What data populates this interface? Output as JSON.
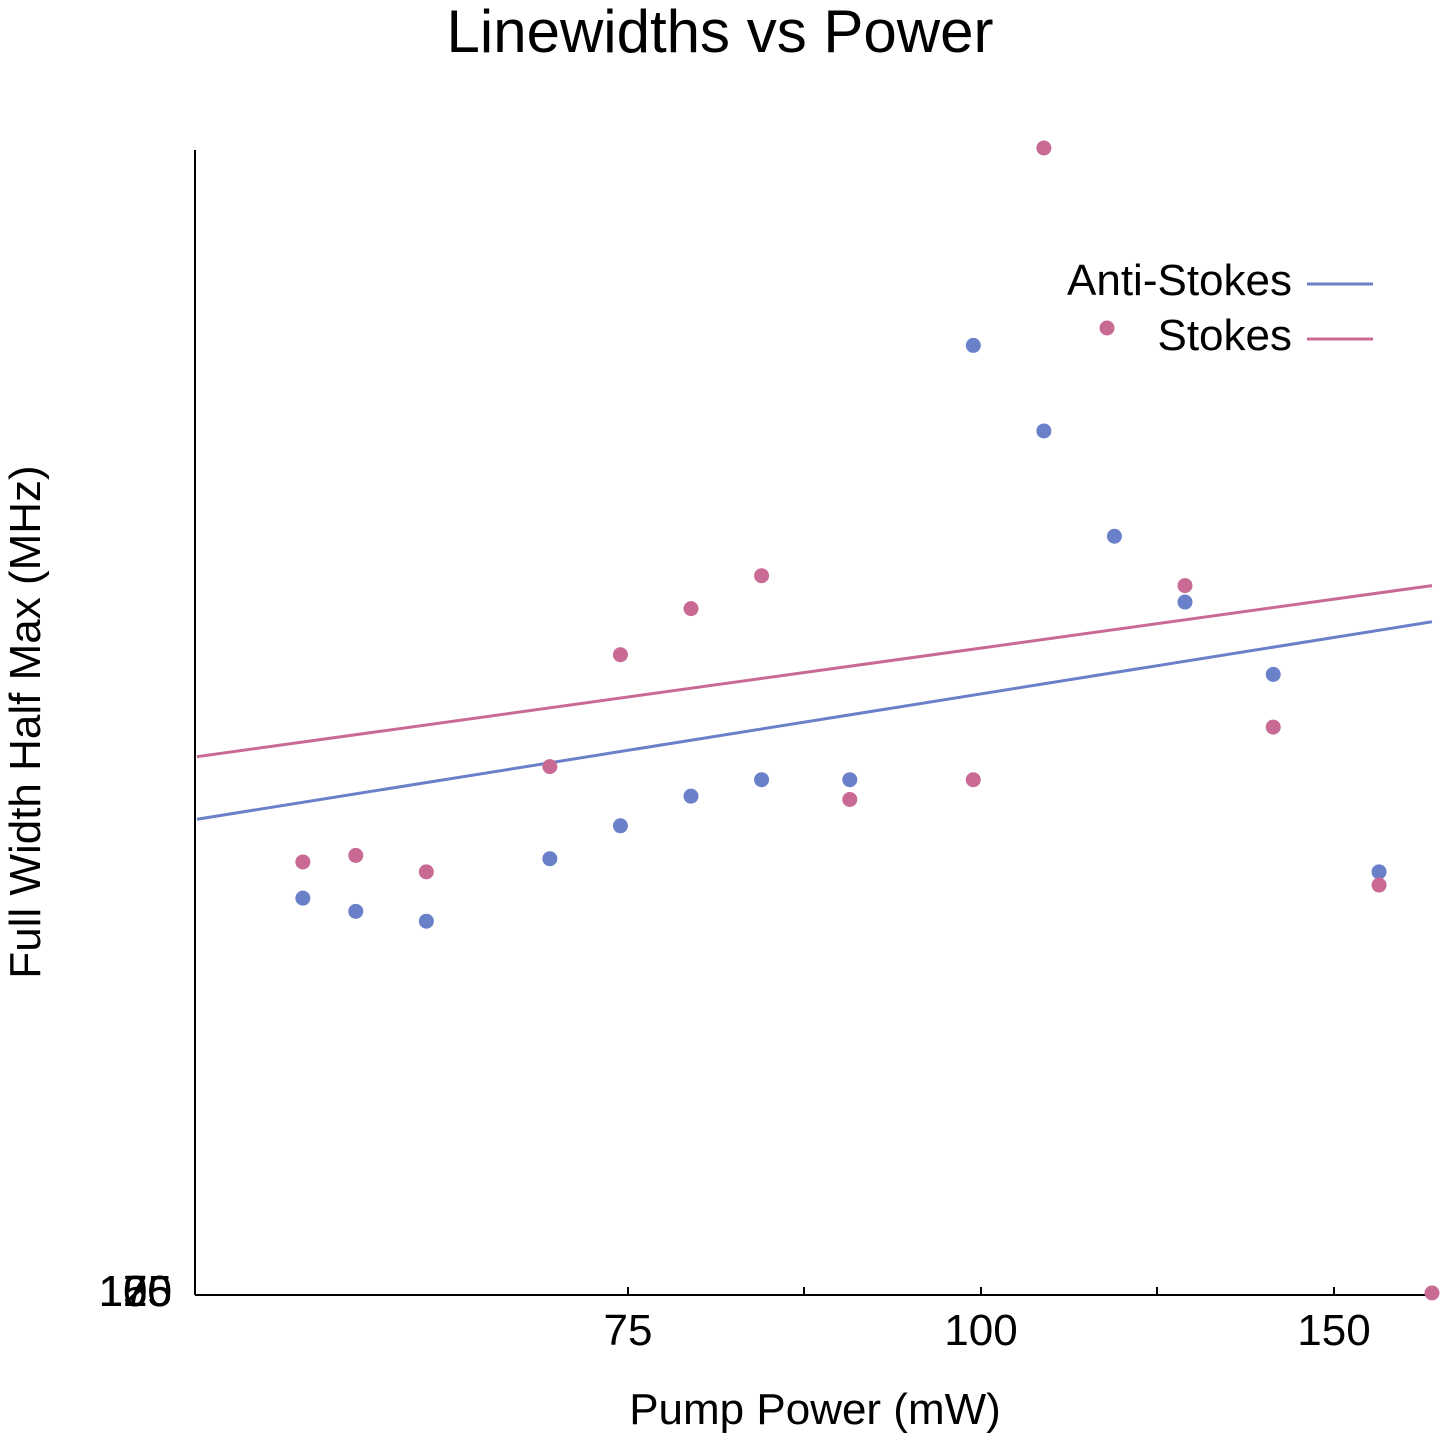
{
  "chart_data": {
    "type": "scatter",
    "title": "Linewidths vs Power",
    "xlabel": "Pump Power (mW)",
    "ylabel": "Full Width Half Max (MHz)",
    "x_tick_labels": [
      "75",
      "100",
      "150"
    ],
    "y_tick_labels_overlapping": [
      "100",
      "125",
      "150",
      "175"
    ],
    "legend_placement": "top-right",
    "grid": false,
    "series": [
      {
        "name": "Anti-Stokes",
        "color": "#6a80c8",
        "marker": "circle",
        "points": [
          [
            56,
            60
          ],
          [
            59,
            58
          ],
          [
            63,
            56.5
          ],
          [
            70,
            66
          ],
          [
            74,
            71
          ],
          [
            78,
            75.5
          ],
          [
            82,
            78
          ],
          [
            87,
            78
          ],
          [
            94,
            144
          ],
          [
            98,
            131
          ],
          [
            102,
            115
          ],
          [
            106,
            105
          ],
          [
            111,
            94
          ],
          [
            117,
            64
          ]
        ],
        "fit_line": [
          [
            50,
            72
          ],
          [
            120,
            102
          ]
        ]
      },
      {
        "name": "Stokes",
        "color": "#c86a94",
        "marker": "circle",
        "points": [
          [
            56,
            65.5
          ],
          [
            59,
            66.5
          ],
          [
            63,
            64
          ],
          [
            70,
            80
          ],
          [
            74,
            97
          ],
          [
            78,
            104
          ],
          [
            82,
            109
          ],
          [
            87,
            75
          ],
          [
            94,
            78
          ],
          [
            98,
            174
          ],
          [
            106,
            107.5
          ],
          [
            111,
            86
          ],
          [
            117,
            62
          ],
          [
            120,
            0
          ]
        ],
        "fit_line": [
          [
            50,
            81.5
          ],
          [
            120,
            107.5
          ]
        ]
      }
    ]
  }
}
